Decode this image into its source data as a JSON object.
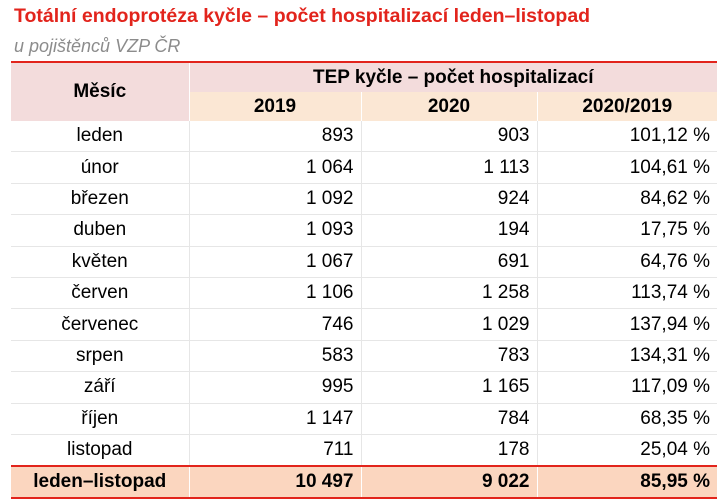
{
  "title": "Totální endoprotéza kyčle – počet hospitalizací leden–listopad",
  "subtitle": "u pojištěnců VZP ČR",
  "table": {
    "month_header": "Měsíc",
    "group_header": "TEP kyčle – počet hospitalizací",
    "col_2019": "2019",
    "col_2020": "2020",
    "col_ratio": "2020/2019",
    "rows": [
      {
        "month": "leden",
        "v2019": "893",
        "v2020": "903",
        "ratio": "101,12 %"
      },
      {
        "month": "únor",
        "v2019": "1 064",
        "v2020": "1 113",
        "ratio": "104,61 %"
      },
      {
        "month": "březen",
        "v2019": "1 092",
        "v2020": "924",
        "ratio": "84,62 %"
      },
      {
        "month": "duben",
        "v2019": "1 093",
        "v2020": "194",
        "ratio": "17,75 %"
      },
      {
        "month": "květen",
        "v2019": "1 067",
        "v2020": "691",
        "ratio": "64,76 %"
      },
      {
        "month": "červen",
        "v2019": "1 106",
        "v2020": "1 258",
        "ratio": "113,74 %"
      },
      {
        "month": "červenec",
        "v2019": "746",
        "v2020": "1 029",
        "ratio": "137,94 %"
      },
      {
        "month": "srpen",
        "v2019": "583",
        "v2020": "783",
        "ratio": "134,31 %"
      },
      {
        "month": "září",
        "v2019": "995",
        "v2020": "1 165",
        "ratio": "117,09 %"
      },
      {
        "month": "říjen",
        "v2019": "1 147",
        "v2020": "784",
        "ratio": "68,35 %"
      },
      {
        "month": "listopad",
        "v2019": "711",
        "v2020": "178",
        "ratio": "25,04 %"
      }
    ],
    "total": {
      "month": "leden–listopad",
      "v2019": "10 497",
      "v2020": "9 022",
      "ratio": "85,95 %"
    }
  }
}
